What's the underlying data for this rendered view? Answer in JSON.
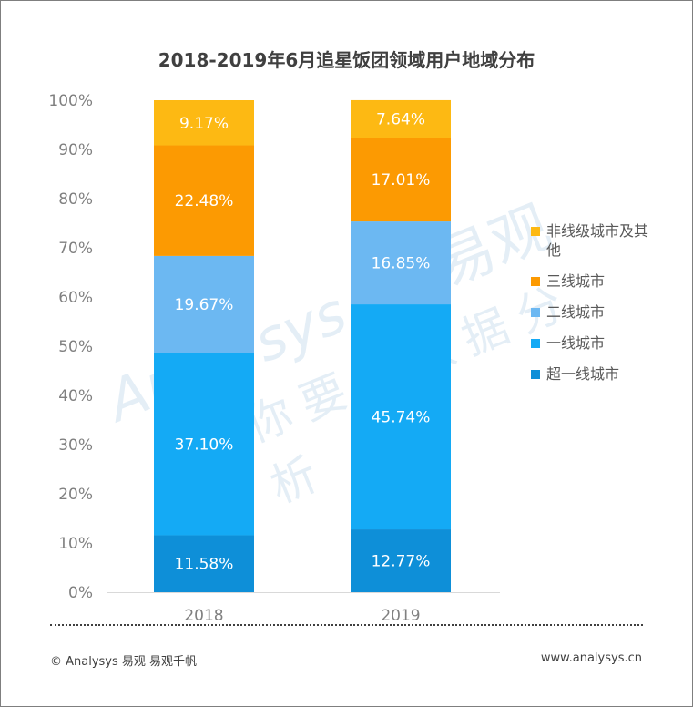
{
  "title": "2018-2019年6月追星饭团领域用户地域分布",
  "watermark": {
    "brand_en": "Analysys",
    "brand_cn": "易观",
    "slogan": "你要的数据分析"
  },
  "footer": {
    "left": "© Analysys 易观 易观千帆",
    "right": "www.analysys.cn"
  },
  "chart_data": {
    "type": "bar",
    "stacked": true,
    "percent": true,
    "categories": [
      "2018",
      "2019"
    ],
    "yticks": [
      "0%",
      "10%",
      "20%",
      "30%",
      "40%",
      "50%",
      "60%",
      "70%",
      "80%",
      "90%",
      "100%"
    ],
    "ylim": [
      0,
      100
    ],
    "grid": false,
    "legend_position": "right",
    "series": [
      {
        "name": "超一线城市",
        "color": "#0e8fd8",
        "values": [
          11.58,
          12.77
        ],
        "labels": [
          "11.58%",
          "12.77%"
        ]
      },
      {
        "name": "一线城市",
        "color": "#14aaf5",
        "values": [
          37.1,
          45.74
        ],
        "labels": [
          "37.10%",
          "45.74%"
        ]
      },
      {
        "name": "二线城市",
        "color": "#6cb8f2",
        "values": [
          19.67,
          16.85
        ],
        "labels": [
          "19.67%",
          "16.85%"
        ]
      },
      {
        "name": "三线城市",
        "color": "#fc9a02",
        "values": [
          22.48,
          17.01
        ],
        "labels": [
          "22.48%",
          "17.01%"
        ]
      },
      {
        "name": "非线级城市及其他",
        "color": "#fdb913",
        "values": [
          9.17,
          7.64
        ],
        "labels": [
          "9.17%",
          "7.64%"
        ]
      }
    ]
  }
}
